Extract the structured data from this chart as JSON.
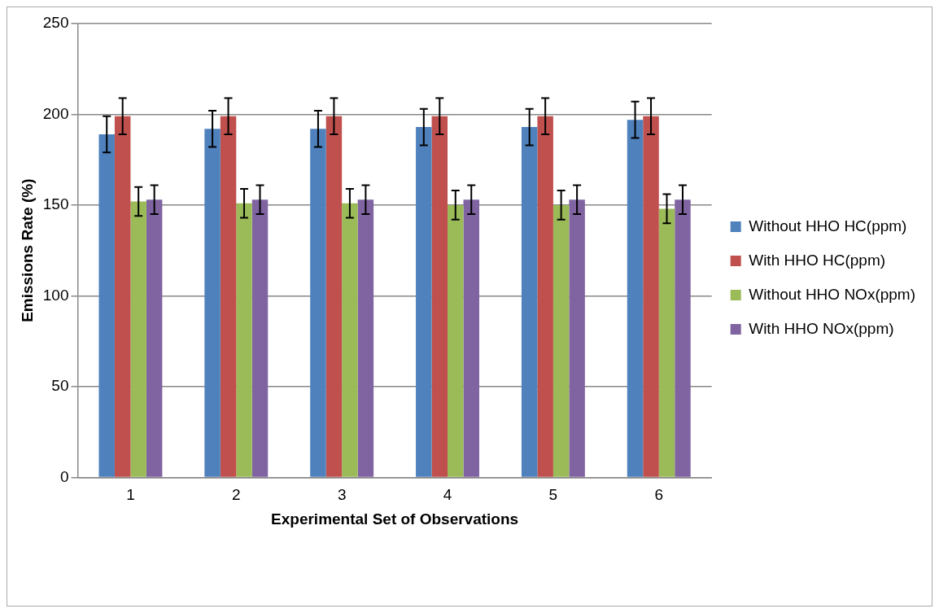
{
  "chart_data": {
    "type": "bar",
    "xlabel": "Experimental Set of Observations",
    "ylabel": "Emissions Rate (%)",
    "categories": [
      "1",
      "2",
      "3",
      "4",
      "5",
      "6"
    ],
    "series": [
      {
        "name": "Without HHO HC(ppm)",
        "color": "#4f81bd",
        "values": [
          189,
          192,
          192,
          193,
          193,
          197
        ],
        "errors": [
          10,
          10,
          10,
          10,
          10,
          10
        ]
      },
      {
        "name": "With HHO HC(ppm)",
        "color": "#c0504d",
        "values": [
          199,
          199,
          199,
          199,
          199,
          199
        ],
        "errors": [
          10,
          10,
          10,
          10,
          10,
          10
        ]
      },
      {
        "name": "Without HHO NOx(ppm)",
        "color": "#9bbb59",
        "values": [
          152,
          151,
          151,
          150,
          150,
          148
        ],
        "errors": [
          8,
          8,
          8,
          8,
          8,
          8
        ]
      },
      {
        "name": "With HHO NOx(ppm)",
        "color": "#8064a2",
        "values": [
          153,
          153,
          153,
          153,
          153,
          153
        ],
        "errors": [
          8,
          8,
          8,
          8,
          8,
          8
        ]
      }
    ],
    "ylim": [
      0,
      250
    ],
    "yticks": [
      0,
      50,
      100,
      150,
      200,
      250
    ],
    "grid": "y",
    "legend": "right"
  }
}
